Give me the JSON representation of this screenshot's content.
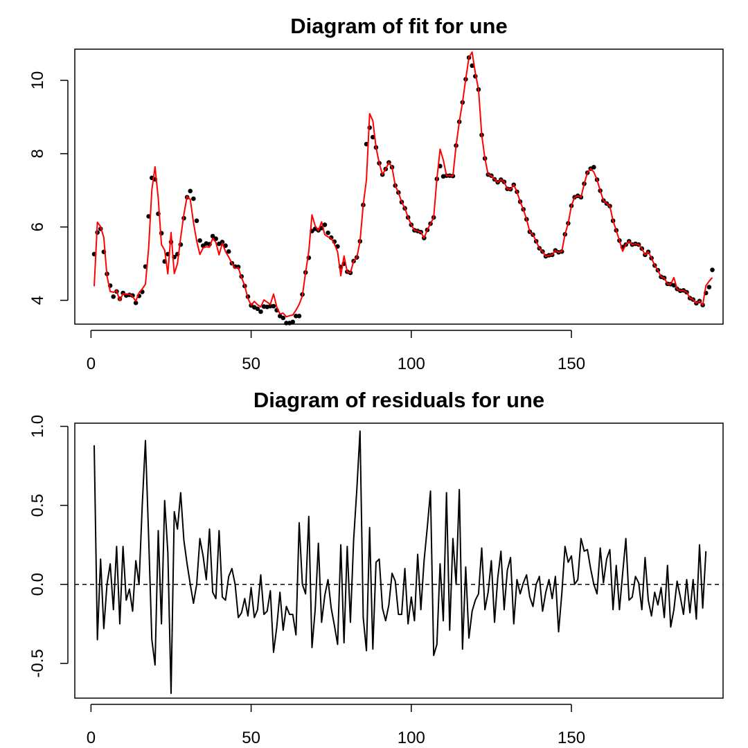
{
  "chart_data": [
    {
      "type": "line",
      "title": "Diagram of fit for une",
      "xlim": [
        1,
        190
      ],
      "ylim": [
        3.35,
        10.85
      ],
      "x_ticks": [
        0,
        50,
        100,
        150
      ],
      "y_ticks": [
        4,
        6,
        8,
        10
      ],
      "grid": false,
      "series": [
        {
          "kind": "points",
          "color": "#000000",
          "values": [
            5.26,
            5.85,
            5.95,
            5.32,
            4.72,
            4.4,
            4.1,
            4.24,
            4.04,
            4.2,
            4.13,
            4.15,
            4.13,
            3.93,
            4.12,
            4.23,
            4.92,
            6.29,
            7.34,
            7.3,
            6.36,
            5.83,
            5.06,
            5.26,
            5.59,
            5.18,
            5.26,
            5.52,
            6.24,
            6.81,
            6.98,
            6.77,
            6.17,
            5.63,
            5.49,
            5.55,
            5.53,
            5.75,
            5.68,
            5.54,
            5.59,
            5.49,
            5.33,
            5.01,
            4.92,
            4.91,
            4.65,
            4.39,
            4.1,
            3.86,
            3.81,
            3.77,
            3.69,
            3.83,
            3.82,
            3.84,
            3.84,
            3.73,
            3.57,
            3.52,
            3.38,
            3.38,
            3.41,
            3.57,
            3.57,
            4.16,
            4.76,
            5.16,
            5.89,
            5.95,
            5.91,
            5.97,
            6.06,
            5.84,
            5.71,
            5.6,
            5.47,
            4.91,
            5.0,
            4.78,
            4.75,
            5.07,
            5.17,
            5.61,
            6.6,
            8.26,
            8.71,
            8.45,
            8.17,
            7.74,
            7.43,
            7.58,
            7.76,
            7.63,
            7.13,
            6.94,
            6.68,
            6.51,
            6.26,
            6.06,
            5.91,
            5.89,
            5.86,
            5.7,
            5.92,
            6.09,
            6.26,
            7.31,
            7.66,
            7.38,
            7.4,
            7.4,
            7.39,
            8.22,
            8.87,
            9.4,
            10.03,
            10.62,
            10.4,
            10.11,
            9.75,
            8.51,
            7.87,
            7.43,
            7.4,
            7.3,
            7.22,
            7.29,
            7.23,
            7.04,
            7.03,
            7.15,
            6.96,
            6.69,
            6.48,
            6.21,
            5.87,
            5.79,
            5.61,
            5.42,
            5.33,
            5.2,
            5.23,
            5.24,
            5.36,
            5.31,
            5.33,
            5.8,
            6.1,
            6.58,
            6.81,
            6.85,
            6.81,
            7.18,
            7.48,
            7.59,
            7.63,
            7.29,
            6.99,
            6.72,
            6.64,
            6.57,
            6.17,
            5.91,
            5.63,
            5.45,
            5.52,
            5.61,
            5.52,
            5.54,
            5.52,
            5.41,
            5.24,
            5.32,
            5.15,
            4.95,
            4.82,
            4.64,
            4.61,
            4.45,
            4.44,
            4.41,
            4.31,
            4.26,
            4.27,
            4.22,
            4.06,
            4.02,
            3.92,
            3.98,
            3.87,
            4.2,
            4.36,
            4.83
          ]
        },
        {
          "kind": "line",
          "color": "#ff0000",
          "values": [
            4.38,
            6.13,
            6.01,
            5.71,
            4.66,
            4.24,
            4.22,
            4.26,
            3.99,
            4.18,
            4.17,
            4.17,
            4.1,
            3.98,
            4.21,
            4.31,
            4.44,
            5.42,
            7.01,
            7.64,
            6.78,
            5.52,
            5.37,
            4.72,
            5.85,
            4.73,
            5.0,
            5.71,
            6.34,
            6.83,
            6.75,
            6.12,
            5.62,
            5.25,
            5.43,
            5.46,
            5.45,
            5.69,
            5.58,
            5.24,
            5.56,
            5.33,
            5.18,
            5.01,
            4.87,
            4.89,
            4.62,
            4.4,
            4.05,
            3.87,
            3.97,
            3.88,
            3.82,
            4.01,
            3.95,
            3.89,
            4.17,
            3.82,
            3.63,
            3.65,
            3.55,
            3.58,
            3.6,
            3.73,
            3.89,
            4.12,
            4.76,
            5.33,
            6.33,
            6.03,
            5.9,
            6.14,
            5.79,
            5.73,
            5.69,
            5.54,
            5.32,
            4.67,
            5.21,
            4.78,
            4.75,
            5.07,
            5.17,
            5.61,
            6.6,
            7.29,
            9.09,
            8.9,
            8.17,
            7.74,
            7.43,
            7.58,
            7.76,
            7.63,
            7.13,
            6.94,
            6.68,
            6.51,
            6.26,
            6.06,
            5.91,
            5.89,
            5.86,
            5.7,
            5.92,
            6.09,
            6.26,
            7.31,
            8.12,
            7.83,
            7.4,
            7.4,
            7.39,
            8.22,
            8.87,
            9.4,
            10.03,
            10.62,
            10.77,
            10.2,
            9.75,
            8.51,
            7.87,
            7.43,
            7.4,
            7.3,
            7.22,
            7.29,
            7.23,
            7.04,
            7.03,
            7.15,
            6.96,
            6.69,
            6.48,
            6.21,
            5.87,
            5.79,
            5.61,
            5.42,
            5.33,
            5.2,
            5.23,
            5.24,
            5.36,
            5.31,
            5.33,
            5.8,
            6.1,
            6.58,
            6.81,
            6.85,
            6.81,
            7.18,
            7.48,
            7.59,
            7.5,
            7.29,
            6.99,
            6.72,
            6.64,
            6.57,
            6.17,
            5.91,
            5.63,
            5.34,
            5.52,
            5.61,
            5.52,
            5.54,
            5.52,
            5.41,
            5.24,
            5.32,
            5.15,
            4.95,
            4.82,
            4.64,
            4.61,
            4.45,
            4.44,
            4.62,
            4.31,
            4.26,
            4.27,
            4.22,
            4.06,
            4.02,
            3.92,
            3.98,
            3.87,
            4.4,
            4.52,
            4.62
          ]
        }
      ]
    },
    {
      "type": "line",
      "title": "Diagram of residuals for une",
      "xlim": [
        1,
        190
      ],
      "ylim": [
        -0.72,
        1.02
      ],
      "x_ticks": [
        0,
        50,
        100,
        150
      ],
      "y_ticks": [
        -0.5,
        0.0,
        0.5,
        1.0
      ],
      "y_tick_labels": [
        "-0.5",
        "0.0",
        "0.5",
        "1.0"
      ],
      "reference_line": 0,
      "grid": false,
      "series": [
        {
          "kind": "line",
          "color": "#000000",
          "values": [
            0.88,
            -0.35,
            0.16,
            -0.28,
            0.0,
            0.13,
            -0.16,
            0.24,
            -0.25,
            0.24,
            -0.1,
            -0.03,
            -0.17,
            0.15,
            0.0,
            0.5,
            0.91,
            0.3,
            -0.35,
            -0.51,
            0.34,
            -0.25,
            0.53,
            0.2,
            -0.69,
            0.46,
            0.35,
            0.58,
            0.28,
            0.13,
            0.0,
            -0.12,
            0.0,
            0.29,
            0.18,
            0.03,
            0.35,
            -0.05,
            -0.09,
            0.34,
            -0.08,
            -0.1,
            0.05,
            0.1,
            0.0,
            -0.21,
            -0.18,
            -0.09,
            -0.2,
            -0.02,
            -0.21,
            -0.16,
            0.06,
            -0.19,
            -0.17,
            -0.04,
            -0.43,
            -0.27,
            -0.05,
            -0.29,
            -0.14,
            -0.19,
            -0.19,
            -0.32,
            0.39,
            0.0,
            -0.06,
            0.43,
            -0.4,
            -0.16,
            0.26,
            -0.24,
            -0.07,
            0.03,
            -0.15,
            -0.26,
            -0.38,
            0.25,
            -0.37,
            0.24,
            -0.24,
            0.28,
            0.6,
            0.97,
            -0.21,
            -0.42,
            0.36,
            -0.41,
            0.14,
            0.16,
            -0.15,
            -0.23,
            -0.13,
            0.07,
            0.02,
            -0.19,
            -0.19,
            0.1,
            -0.25,
            -0.08,
            -0.23,
            0.19,
            -0.16,
            0.15,
            0.36,
            0.59,
            -0.45,
            -0.38,
            0.13,
            -0.23,
            0.58,
            -0.29,
            0.29,
            0.0,
            0.6,
            -0.41,
            0.11,
            -0.34,
            -0.17,
            -0.1,
            -0.06,
            0.23,
            -0.16,
            -0.05,
            0.15,
            -0.24,
            0.04,
            0.21,
            -0.16,
            0.09,
            0.17,
            -0.25,
            0.03,
            -0.06,
            0.01,
            0.06,
            -0.08,
            -0.14,
            0.0,
            0.05,
            -0.17,
            -0.05,
            0.03,
            -0.09,
            0.05,
            -0.3,
            -0.06,
            0.24,
            0.14,
            0.18,
            0.0,
            0.03,
            0.29,
            0.21,
            0.22,
            0.1,
            0.0,
            -0.06,
            0.23,
            0.01,
            0.16,
            0.22,
            -0.16,
            0.12,
            -0.16,
            0.07,
            0.29,
            -0.1,
            -0.08,
            0.05,
            0.01,
            -0.16,
            0.17,
            -0.1,
            -0.2,
            -0.05,
            -0.13,
            -0.02,
            -0.21,
            0.12,
            -0.27,
            -0.16,
            0.02,
            -0.08,
            -0.19,
            0.03,
            -0.18,
            0.03,
            -0.22,
            0.25,
            -0.15,
            0.21
          ]
        }
      ]
    }
  ]
}
